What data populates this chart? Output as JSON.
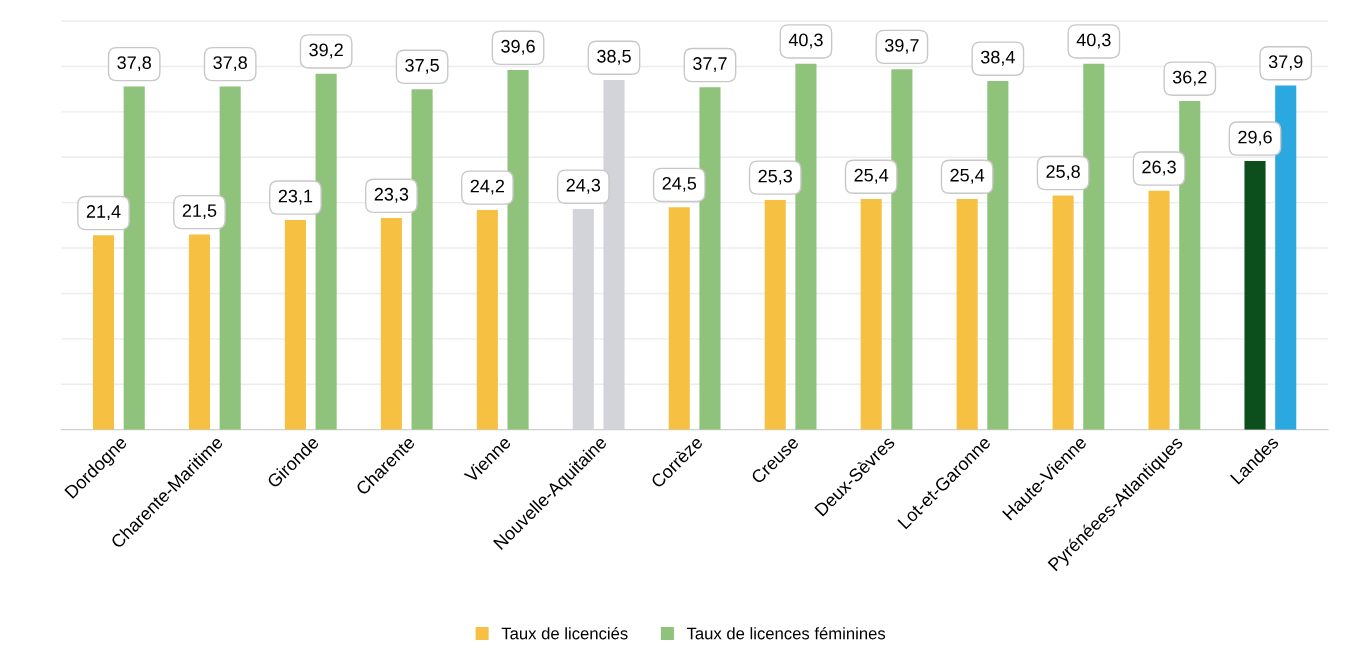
{
  "chart_data": {
    "type": "bar",
    "categories": [
      "Dordogne",
      "Charente-Maritime",
      "Gironde",
      "Charente",
      "Vienne",
      "Nouvelle-Aquitaine",
      "Corrèze",
      "Creuse",
      "Deux-Sèvres",
      "Lot-et-Garonne",
      "Haute-Vienne",
      "Pyrénéees-Atlantiques",
      "Landes"
    ],
    "series": [
      {
        "name": "Taux de licenciés",
        "color": "#f6c143",
        "colors": [
          "#f6c143",
          "#f6c143",
          "#f6c143",
          "#f6c143",
          "#f6c143",
          "#d3d3da",
          "#f6c143",
          "#f6c143",
          "#f6c143",
          "#f6c143",
          "#f6c143",
          "#f6c143",
          "#0d4f1c"
        ],
        "values": [
          21.4,
          21.5,
          23.1,
          23.3,
          24.2,
          24.3,
          24.5,
          25.3,
          25.4,
          25.4,
          25.8,
          26.3,
          29.6
        ],
        "value_labels": [
          "21,4",
          "21,5",
          "23,1",
          "23,3",
          "24,2",
          "24,3",
          "24,5",
          "25,3",
          "25,4",
          "25,4",
          "25,8",
          "26,3",
          "29,6"
        ]
      },
      {
        "name": "Taux de licences féminines",
        "color": "#8fc27a",
        "colors": [
          "#8fc27a",
          "#8fc27a",
          "#8fc27a",
          "#8fc27a",
          "#8fc27a",
          "#d3d3da",
          "#8fc27a",
          "#8fc27a",
          "#8fc27a",
          "#8fc27a",
          "#8fc27a",
          "#8fc27a",
          "#2aa8df"
        ],
        "values": [
          37.8,
          37.8,
          39.2,
          37.5,
          39.6,
          38.5,
          37.7,
          40.3,
          39.7,
          38.4,
          40.3,
          36.2,
          37.9
        ],
        "value_labels": [
          "37,8",
          "37,8",
          "39,2",
          "37,5",
          "39,6",
          "38,5",
          "37,7",
          "40,3",
          "39,7",
          "38,4",
          "40,3",
          "36,2",
          "37,9"
        ]
      }
    ],
    "tick_labels": "x",
    "grid": "y",
    "legend": "bottom"
  }
}
